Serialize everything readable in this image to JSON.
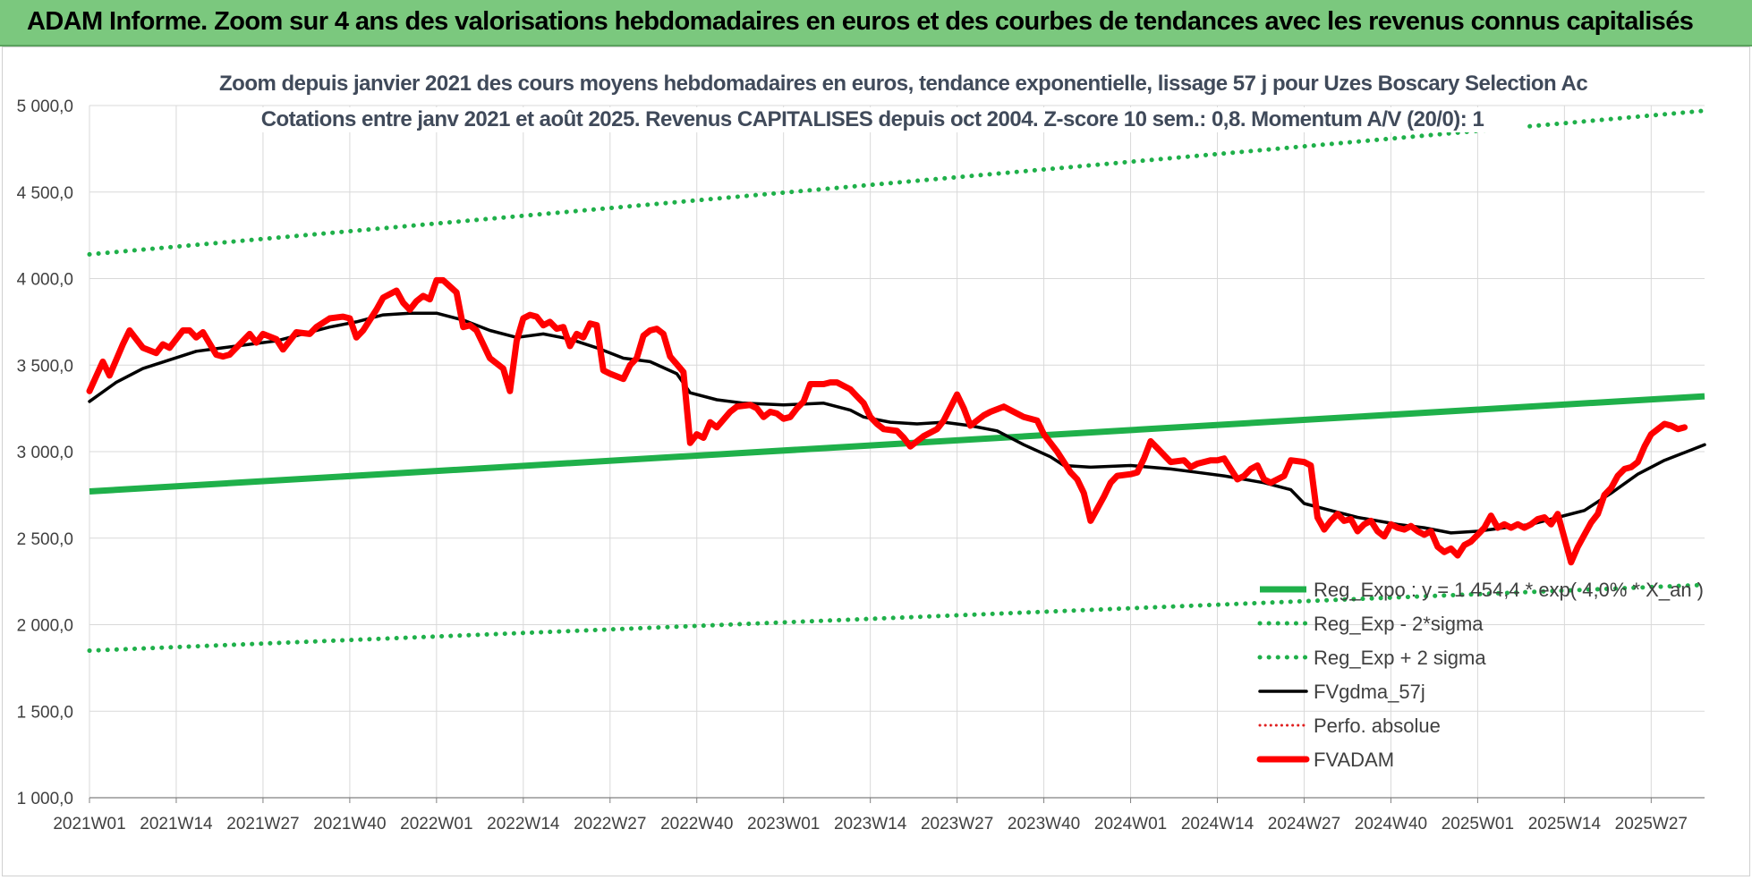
{
  "banner": {
    "title": "ADAM Informe. Zoom sur 4 ans des valorisations hebdomadaires en euros et des courbes de tendances avec les revenus connus capitalisés"
  },
  "chart_data": {
    "type": "line",
    "title": "Zoom depuis janvier 2021 des cours moyens hebdomadaires en euros, tendance exponentielle, lissage 57 j pour Uzes Boscary Selection Ac",
    "subtitle": "Cotations entre janv 2021 et août 2025. Revenus CAPITALISES depuis oct 2004. Z-score 10 sem.: 0,8. Momentum A/V (20/0): 1",
    "xlabel": "",
    "ylabel": "",
    "ylim": [
      1000,
      5000
    ],
    "yticks": [
      "1 000,0",
      "1 500,0",
      "2 000,0",
      "2 500,0",
      "3 000,0",
      "3 500,0",
      "4 000,0",
      "4 500,0",
      "5 000,0"
    ],
    "x_range_weeks": [
      0,
      242
    ],
    "xticks": [
      {
        "label": "2021W01",
        "week": 0
      },
      {
        "label": "2021W14",
        "week": 13
      },
      {
        "label": "2021W27",
        "week": 26
      },
      {
        "label": "2021W40",
        "week": 39
      },
      {
        "label": "2022W01",
        "week": 52
      },
      {
        "label": "2022W14",
        "week": 65
      },
      {
        "label": "2022W27",
        "week": 78
      },
      {
        "label": "2022W40",
        "week": 91
      },
      {
        "label": "2023W01",
        "week": 104
      },
      {
        "label": "2023W14",
        "week": 117
      },
      {
        "label": "2023W27",
        "week": 130
      },
      {
        "label": "2023W40",
        "week": 143
      },
      {
        "label": "2024W01",
        "week": 156
      },
      {
        "label": "2024W14",
        "week": 169
      },
      {
        "label": "2024W27",
        "week": 182
      },
      {
        "label": "2024W40",
        "week": 195
      },
      {
        "label": "2025W01",
        "week": 208
      },
      {
        "label": "2025W14",
        "week": 221
      },
      {
        "label": "2025W27",
        "week": 234
      }
    ],
    "grid": true,
    "legend_position": "bottom-right (inside plot)",
    "series": [
      {
        "name": "Reg_Expo : y = 1 454,4 * exp( 4,0% * X_an )",
        "style": "solid",
        "color": "#1fb04a",
        "points": [
          [
            0,
            2770
          ],
          [
            242,
            3320
          ]
        ]
      },
      {
        "name": "Reg_Exp - 2*sigma",
        "style": "dotted",
        "color": "#1fb04a",
        "points": [
          [
            0,
            1850
          ],
          [
            242,
            2230
          ]
        ]
      },
      {
        "name": "Reg_Exp + 2 sigma",
        "style": "dotted",
        "color": "#1fb04a",
        "points": [
          [
            0,
            4140
          ],
          [
            242,
            4970
          ]
        ]
      },
      {
        "name": "FVgdma_57j",
        "style": "solid",
        "color": "#000000",
        "points": [
          [
            0,
            3290
          ],
          [
            4,
            3400
          ],
          [
            8,
            3480
          ],
          [
            12,
            3530
          ],
          [
            16,
            3580
          ],
          [
            20,
            3600
          ],
          [
            24,
            3620
          ],
          [
            28,
            3640
          ],
          [
            32,
            3680
          ],
          [
            36,
            3720
          ],
          [
            40,
            3750
          ],
          [
            44,
            3790
          ],
          [
            48,
            3800
          ],
          [
            52,
            3800
          ],
          [
            56,
            3760
          ],
          [
            60,
            3700
          ],
          [
            64,
            3660
          ],
          [
            68,
            3680
          ],
          [
            72,
            3650
          ],
          [
            76,
            3600
          ],
          [
            80,
            3540
          ],
          [
            84,
            3520
          ],
          [
            88,
            3450
          ],
          [
            90,
            3340
          ],
          [
            94,
            3300
          ],
          [
            98,
            3280
          ],
          [
            104,
            3270
          ],
          [
            110,
            3280
          ],
          [
            114,
            3240
          ],
          [
            116,
            3200
          ],
          [
            120,
            3170
          ],
          [
            124,
            3160
          ],
          [
            128,
            3170
          ],
          [
            132,
            3150
          ],
          [
            136,
            3120
          ],
          [
            140,
            3040
          ],
          [
            144,
            2970
          ],
          [
            146,
            2920
          ],
          [
            150,
            2910
          ],
          [
            156,
            2920
          ],
          [
            162,
            2900
          ],
          [
            166,
            2880
          ],
          [
            170,
            2860
          ],
          [
            176,
            2820
          ],
          [
            180,
            2780
          ],
          [
            182,
            2700
          ],
          [
            186,
            2660
          ],
          [
            190,
            2620
          ],
          [
            196,
            2580
          ],
          [
            200,
            2560
          ],
          [
            204,
            2530
          ],
          [
            208,
            2540
          ],
          [
            212,
            2560
          ],
          [
            216,
            2580
          ],
          [
            220,
            2620
          ],
          [
            224,
            2660
          ],
          [
            228,
            2760
          ],
          [
            232,
            2870
          ],
          [
            236,
            2950
          ],
          [
            240,
            3010
          ],
          [
            242,
            3040
          ]
        ]
      },
      {
        "name": "Perfo. absolue",
        "style": "dotted",
        "color": "#e02020",
        "points": []
      },
      {
        "name": "FVADAM",
        "style": "solid",
        "color": "#ff0000",
        "points": [
          [
            0,
            3350
          ],
          [
            2,
            3520
          ],
          [
            3,
            3440
          ],
          [
            5,
            3620
          ],
          [
            6,
            3700
          ],
          [
            8,
            3600
          ],
          [
            10,
            3570
          ],
          [
            11,
            3620
          ],
          [
            12,
            3600
          ],
          [
            14,
            3700
          ],
          [
            15,
            3700
          ],
          [
            16,
            3660
          ],
          [
            17,
            3690
          ],
          [
            19,
            3560
          ],
          [
            20,
            3550
          ],
          [
            21,
            3560
          ],
          [
            23,
            3640
          ],
          [
            24,
            3680
          ],
          [
            25,
            3630
          ],
          [
            26,
            3680
          ],
          [
            28,
            3650
          ],
          [
            29,
            3590
          ],
          [
            31,
            3690
          ],
          [
            33,
            3680
          ],
          [
            34,
            3720
          ],
          [
            36,
            3770
          ],
          [
            38,
            3780
          ],
          [
            39,
            3770
          ],
          [
            40,
            3660
          ],
          [
            41,
            3700
          ],
          [
            43,
            3820
          ],
          [
            44,
            3890
          ],
          [
            46,
            3930
          ],
          [
            47,
            3860
          ],
          [
            48,
            3820
          ],
          [
            49,
            3870
          ],
          [
            50,
            3900
          ],
          [
            51,
            3880
          ],
          [
            52,
            3990
          ],
          [
            53,
            3990
          ],
          [
            55,
            3920
          ],
          [
            56,
            3720
          ],
          [
            57,
            3730
          ],
          [
            58,
            3700
          ],
          [
            60,
            3540
          ],
          [
            62,
            3480
          ],
          [
            63,
            3350
          ],
          [
            64,
            3640
          ],
          [
            65,
            3770
          ],
          [
            66,
            3790
          ],
          [
            67,
            3780
          ],
          [
            68,
            3730
          ],
          [
            69,
            3750
          ],
          [
            70,
            3710
          ],
          [
            71,
            3720
          ],
          [
            72,
            3610
          ],
          [
            73,
            3680
          ],
          [
            74,
            3660
          ],
          [
            75,
            3740
          ],
          [
            76,
            3730
          ],
          [
            77,
            3470
          ],
          [
            78,
            3450
          ],
          [
            80,
            3420
          ],
          [
            81,
            3500
          ],
          [
            82,
            3540
          ],
          [
            83,
            3670
          ],
          [
            84,
            3700
          ],
          [
            85,
            3710
          ],
          [
            86,
            3680
          ],
          [
            87,
            3550
          ],
          [
            89,
            3460
          ],
          [
            90,
            3050
          ],
          [
            91,
            3100
          ],
          [
            92,
            3080
          ],
          [
            93,
            3170
          ],
          [
            94,
            3140
          ],
          [
            96,
            3230
          ],
          [
            97,
            3260
          ],
          [
            99,
            3270
          ],
          [
            100,
            3250
          ],
          [
            101,
            3200
          ],
          [
            102,
            3230
          ],
          [
            103,
            3220
          ],
          [
            104,
            3190
          ],
          [
            105,
            3200
          ],
          [
            106,
            3250
          ],
          [
            107,
            3290
          ],
          [
            108,
            3390
          ],
          [
            110,
            3390
          ],
          [
            111,
            3400
          ],
          [
            112,
            3400
          ],
          [
            114,
            3360
          ],
          [
            115,
            3320
          ],
          [
            116,
            3280
          ],
          [
            117,
            3200
          ],
          [
            118,
            3160
          ],
          [
            119,
            3130
          ],
          [
            121,
            3120
          ],
          [
            122,
            3080
          ],
          [
            123,
            3030
          ],
          [
            124,
            3060
          ],
          [
            125,
            3090
          ],
          [
            127,
            3130
          ],
          [
            128,
            3180
          ],
          [
            130,
            3330
          ],
          [
            131,
            3250
          ],
          [
            132,
            3150
          ],
          [
            134,
            3210
          ],
          [
            135,
            3230
          ],
          [
            137,
            3260
          ],
          [
            138,
            3240
          ],
          [
            140,
            3200
          ],
          [
            142,
            3180
          ],
          [
            143,
            3100
          ],
          [
            145,
            3000
          ],
          [
            147,
            2880
          ],
          [
            148,
            2840
          ],
          [
            149,
            2760
          ],
          [
            150,
            2600
          ],
          [
            152,
            2740
          ],
          [
            153,
            2820
          ],
          [
            154,
            2860
          ],
          [
            156,
            2870
          ],
          [
            157,
            2880
          ],
          [
            158,
            2960
          ],
          [
            159,
            3060
          ],
          [
            160,
            3020
          ],
          [
            162,
            2940
          ],
          [
            164,
            2950
          ],
          [
            165,
            2910
          ],
          [
            166,
            2930
          ],
          [
            168,
            2950
          ],
          [
            169,
            2950
          ],
          [
            170,
            2960
          ],
          [
            171,
            2900
          ],
          [
            172,
            2840
          ],
          [
            173,
            2860
          ],
          [
            174,
            2900
          ],
          [
            175,
            2920
          ],
          [
            176,
            2840
          ],
          [
            177,
            2820
          ],
          [
            178,
            2840
          ],
          [
            179,
            2860
          ],
          [
            180,
            2950
          ],
          [
            182,
            2940
          ],
          [
            183,
            2920
          ],
          [
            184,
            2620
          ],
          [
            185,
            2550
          ],
          [
            186,
            2600
          ],
          [
            187,
            2640
          ],
          [
            188,
            2600
          ],
          [
            189,
            2610
          ],
          [
            190,
            2540
          ],
          [
            191,
            2580
          ],
          [
            192,
            2600
          ],
          [
            193,
            2540
          ],
          [
            194,
            2510
          ],
          [
            195,
            2580
          ],
          [
            196,
            2560
          ],
          [
            197,
            2550
          ],
          [
            198,
            2570
          ],
          [
            199,
            2540
          ],
          [
            200,
            2520
          ],
          [
            201,
            2540
          ],
          [
            202,
            2450
          ],
          [
            203,
            2420
          ],
          [
            204,
            2440
          ],
          [
            205,
            2400
          ],
          [
            206,
            2460
          ],
          [
            207,
            2480
          ],
          [
            208,
            2520
          ],
          [
            209,
            2560
          ],
          [
            210,
            2630
          ],
          [
            211,
            2560
          ],
          [
            212,
            2580
          ],
          [
            213,
            2560
          ],
          [
            214,
            2580
          ],
          [
            215,
            2560
          ],
          [
            216,
            2580
          ],
          [
            217,
            2610
          ],
          [
            218,
            2620
          ],
          [
            219,
            2580
          ],
          [
            220,
            2640
          ],
          [
            221,
            2500
          ],
          [
            222,
            2360
          ],
          [
            223,
            2450
          ],
          [
            224,
            2520
          ],
          [
            225,
            2590
          ],
          [
            226,
            2640
          ],
          [
            227,
            2750
          ],
          [
            228,
            2790
          ],
          [
            229,
            2860
          ],
          [
            230,
            2900
          ],
          [
            231,
            2910
          ],
          [
            232,
            2940
          ],
          [
            233,
            3030
          ],
          [
            234,
            3100
          ],
          [
            235,
            3130
          ],
          [
            236,
            3160
          ],
          [
            237,
            3150
          ],
          [
            238,
            3130
          ],
          [
            239,
            3140
          ]
        ]
      }
    ]
  }
}
